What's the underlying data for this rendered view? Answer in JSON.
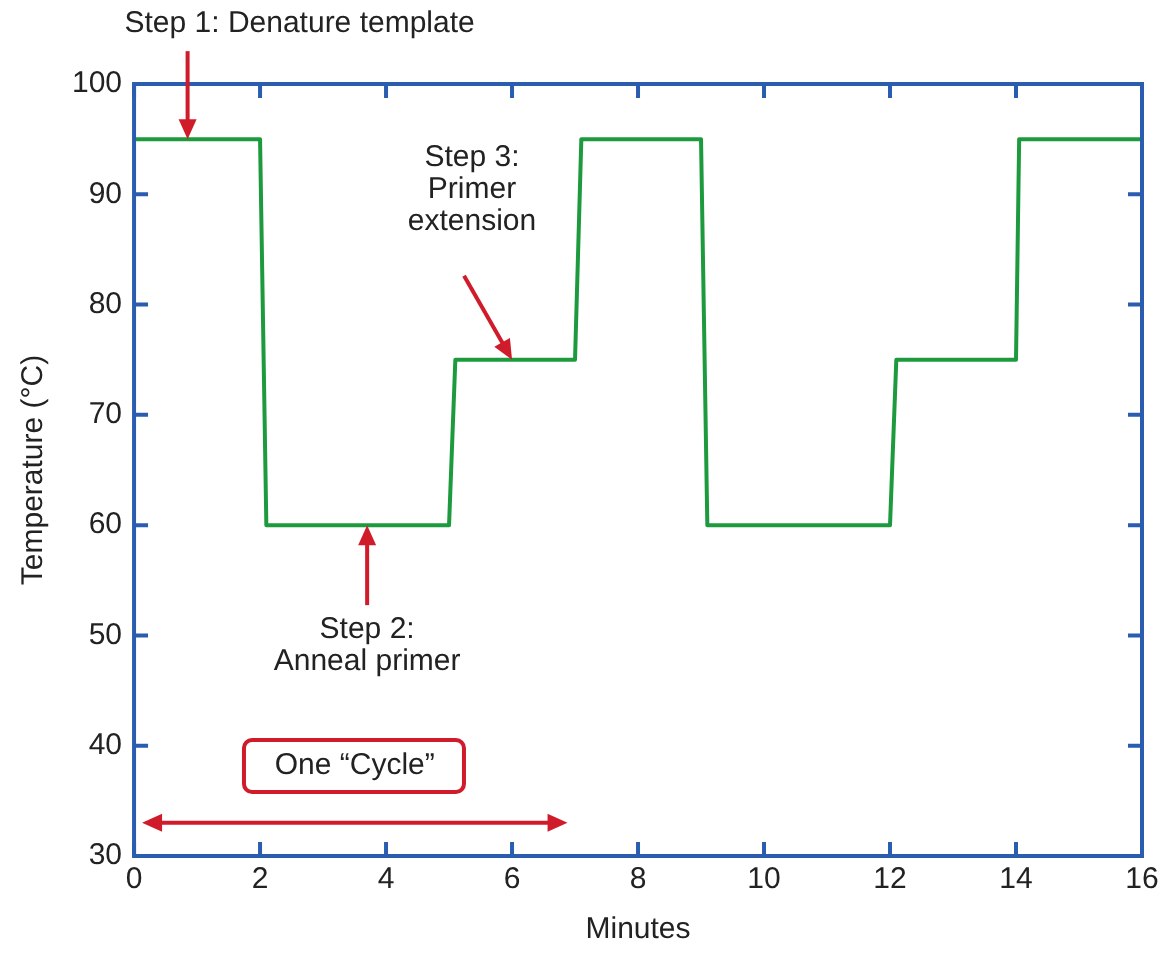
{
  "chart_data": {
    "type": "line",
    "xlabel": "Minutes",
    "ylabel": "Temperature (°C)",
    "x": [
      0,
      2,
      2.1,
      5,
      5.1,
      7,
      7.1,
      9,
      9.1,
      12,
      12.1,
      14,
      14.05,
      16
    ],
    "values": [
      95,
      95,
      60,
      60,
      75,
      75,
      95,
      95,
      60,
      60,
      75,
      75,
      95,
      95
    ],
    "color": "#1e9a3e",
    "marker": "none",
    "xlim": [
      0,
      16
    ],
    "ylim": [
      30,
      100
    ],
    "xticks": [
      0,
      2,
      4,
      6,
      8,
      10,
      12,
      14,
      16
    ],
    "yticks": [
      30,
      40,
      50,
      60,
      70,
      80,
      90,
      100
    ],
    "annotations": [
      {
        "text": "Step 1: Denature template",
        "x": 0.85,
        "y": 95
      },
      {
        "text": "Step 2:\nAnneal primer",
        "x": 3.7,
        "y": 60
      },
      {
        "text": "Step 3:\nPrimer\nextension",
        "x": 6,
        "y": 75
      },
      "One “Cycle”"
    ]
  }
}
